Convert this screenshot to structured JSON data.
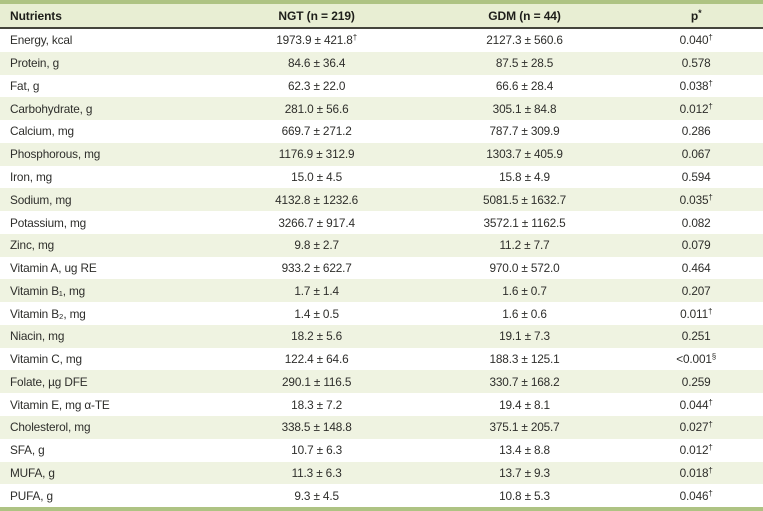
{
  "table": {
    "columns": {
      "nutrients": "Nutrients",
      "ngt": "NGT (n = 219)",
      "gdm": "GDM (n = 44)",
      "p": "p",
      "p_sup": "*"
    },
    "rows": [
      {
        "nutrient": "Energy, kcal",
        "ngt": "1973.9 ± 421.8",
        "ngt_sup": "†",
        "gdm": "2127.3 ± 560.6",
        "p": "0.040",
        "p_sup": "†"
      },
      {
        "nutrient": "Protein, g",
        "ngt": "84.6 ± 36.4",
        "ngt_sup": "",
        "gdm": "87.5 ± 28.5",
        "p": "0.578",
        "p_sup": ""
      },
      {
        "nutrient": "Fat, g",
        "ngt": "62.3 ± 22.0",
        "ngt_sup": "",
        "gdm": "66.6 ± 28.4",
        "p": "0.038",
        "p_sup": "†"
      },
      {
        "nutrient": "Carbohydrate, g",
        "ngt": "281.0 ± 56.6",
        "ngt_sup": "",
        "gdm": "305.1 ± 84.8",
        "p": "0.012",
        "p_sup": "†"
      },
      {
        "nutrient": "Calcium, mg",
        "ngt": "669.7 ± 271.2",
        "ngt_sup": "",
        "gdm": "787.7 ± 309.9",
        "p": "0.286",
        "p_sup": ""
      },
      {
        "nutrient": "Phosphorous, mg",
        "ngt": "1176.9 ± 312.9",
        "ngt_sup": "",
        "gdm": "1303.7 ± 405.9",
        "p": "0.067",
        "p_sup": ""
      },
      {
        "nutrient": "Iron, mg",
        "ngt": "15.0 ± 4.5",
        "ngt_sup": "",
        "gdm": "15.8 ± 4.9",
        "p": "0.594",
        "p_sup": ""
      },
      {
        "nutrient": "Sodium, mg",
        "ngt": "4132.8 ± 1232.6",
        "ngt_sup": "",
        "gdm": "5081.5 ± 1632.7",
        "p": "0.035",
        "p_sup": "†"
      },
      {
        "nutrient": "Potassium, mg",
        "ngt": "3266.7 ± 917.4",
        "ngt_sup": "",
        "gdm": "3572.1 ± 1162.5",
        "p": "0.082",
        "p_sup": ""
      },
      {
        "nutrient": "Zinc, mg",
        "ngt": "9.8 ± 2.7",
        "ngt_sup": "",
        "gdm": "11.2 ± 7.7",
        "p": "0.079",
        "p_sup": ""
      },
      {
        "nutrient": "Vitamin A, ug RE",
        "ngt": "933.2 ± 622.7",
        "ngt_sup": "",
        "gdm": "970.0 ± 572.0",
        "p": "0.464",
        "p_sup": ""
      },
      {
        "nutrient": "Vitamin B₁, mg",
        "ngt": "1.7 ± 1.4",
        "ngt_sup": "",
        "gdm": "1.6 ± 0.7",
        "p": "0.207",
        "p_sup": ""
      },
      {
        "nutrient": "Vitamin B₂, mg",
        "ngt": "1.4 ± 0.5",
        "ngt_sup": "",
        "gdm": "1.6 ± 0.6",
        "p": "0.011",
        "p_sup": "†"
      },
      {
        "nutrient": "Niacin, mg",
        "ngt": "18.2 ± 5.6",
        "ngt_sup": "",
        "gdm": "19.1 ± 7.3",
        "p": "0.251",
        "p_sup": ""
      },
      {
        "nutrient": "Vitamin C, mg",
        "ngt": "122.4 ± 64.6",
        "ngt_sup": "",
        "gdm": "188.3 ± 125.1",
        "p": "<0.001",
        "p_sup": "§"
      },
      {
        "nutrient": "Folate, µg DFE",
        "ngt": "290.1 ± 116.5",
        "ngt_sup": "",
        "gdm": "330.7 ± 168.2",
        "p": "0.259",
        "p_sup": ""
      },
      {
        "nutrient": "Vitamin E, mg α-TE",
        "ngt": "18.3 ± 7.2",
        "ngt_sup": "",
        "gdm": "19.4 ± 8.1",
        "p": "0.044",
        "p_sup": "†"
      },
      {
        "nutrient": "Cholesterol, mg",
        "ngt": "338.5 ± 148.8",
        "ngt_sup": "",
        "gdm": "375.1 ± 205.7",
        "p": "0.027",
        "p_sup": "†"
      },
      {
        "nutrient": "SFA, g",
        "ngt": "10.7 ± 6.3",
        "ngt_sup": "",
        "gdm": "13.4 ± 8.8",
        "p": "0.012",
        "p_sup": "†"
      },
      {
        "nutrient": "MUFA, g",
        "ngt": "11.3 ± 6.3",
        "ngt_sup": "",
        "gdm": "13.7 ± 9.3",
        "p": "0.018",
        "p_sup": "†"
      },
      {
        "nutrient": "PUFA, g",
        "ngt": "9.3 ± 4.5",
        "ngt_sup": "",
        "gdm": "10.8 ± 5.3",
        "p": "0.046",
        "p_sup": "†"
      }
    ],
    "colors": {
      "border_green": "#aec383",
      "header_bg": "#e8eed3",
      "alt_row_bg": "#eff3e1",
      "header_rule": "#45453c"
    }
  }
}
